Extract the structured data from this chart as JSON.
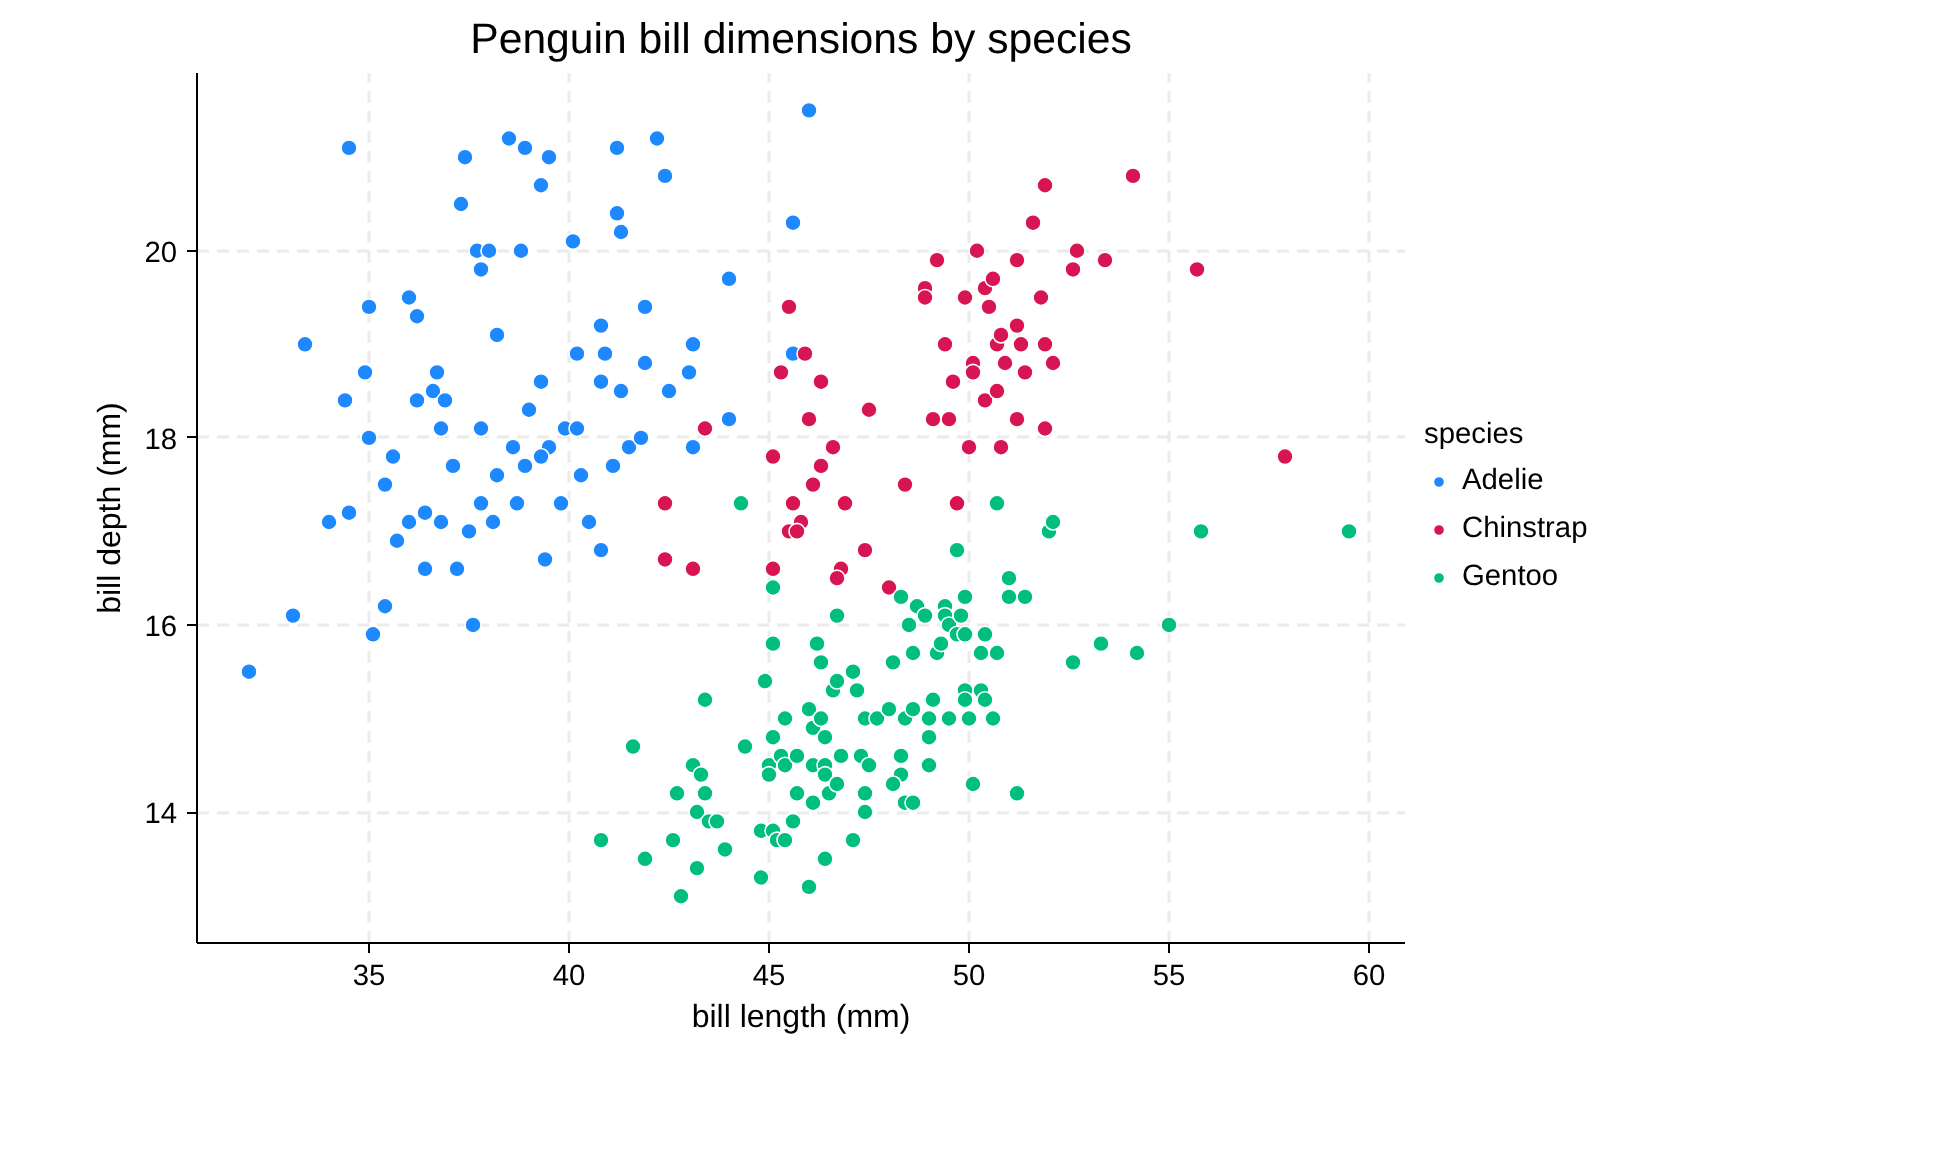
{
  "chart_data": {
    "type": "scatter",
    "title": "Penguin bill dimensions by species",
    "xlabel": "bill length (mm)",
    "ylabel": "bill depth (mm)",
    "legend_title": "species",
    "xlim": [
      30.7,
      60.9
    ],
    "ylim": [
      12.6,
      21.9
    ],
    "xticks": [
      35,
      40,
      45,
      50,
      55,
      60
    ],
    "yticks": [
      14,
      16,
      18,
      20
    ],
    "grid": true,
    "legend": "right",
    "marker": "circle",
    "series": [
      {
        "name": "Adelie",
        "color": "#1e88ff",
        "x": [
          32.0,
          33.1,
          33.4,
          34.0,
          34.5,
          34.4,
          34.5,
          35.1,
          35.4,
          35.0,
          34.9,
          35.0,
          35.4,
          35.6,
          35.7,
          36.0,
          36.2,
          36.0,
          36.2,
          36.4,
          36.6,
          36.7,
          37.1,
          36.9,
          36.8,
          37.2,
          37.4,
          37.3,
          37.7,
          38.0,
          37.8,
          37.6,
          37.8,
          37.5,
          38.1,
          38.2,
          38.2,
          38.5,
          38.9,
          39.3,
          39.5,
          38.8,
          39.0,
          39.3,
          39.4,
          39.9,
          40.1,
          40.2,
          40.8,
          40.9,
          41.2,
          41.2,
          41.3,
          41.9,
          41.9,
          42.2,
          42.4,
          43.1,
          44.0,
          44.0,
          45.6,
          46.0,
          45.6,
          38.6,
          38.9,
          39.5,
          40.3,
          40.5,
          40.8,
          38.7,
          39.8,
          40.8,
          40.2,
          41.3,
          41.5,
          41.8,
          42.5,
          43.0,
          43.1,
          41.1,
          39.3,
          37.8,
          36.8,
          36.4
        ],
        "values": [
          15.5,
          16.1,
          19.0,
          17.1,
          21.1,
          18.4,
          17.2,
          15.9,
          16.2,
          19.4,
          18.7,
          18.0,
          17.5,
          17.8,
          16.9,
          17.1,
          18.4,
          19.5,
          19.3,
          16.6,
          18.5,
          18.7,
          17.7,
          18.4,
          18.1,
          16.6,
          21.0,
          20.5,
          20.0,
          20.0,
          19.8,
          16.0,
          18.1,
          17.0,
          17.1,
          19.1,
          17.6,
          21.2,
          21.1,
          20.7,
          21.0,
          20.0,
          18.3,
          18.6,
          16.7,
          18.1,
          20.1,
          18.1,
          19.2,
          18.9,
          21.1,
          20.4,
          20.2,
          18.8,
          19.4,
          21.2,
          20.8,
          19.0,
          19.7,
          18.2,
          20.3,
          21.5,
          18.9,
          17.9,
          17.7,
          17.9,
          17.6,
          17.1,
          16.8,
          17.3,
          17.3,
          18.6,
          18.9,
          18.5,
          17.9,
          18.0,
          18.5,
          18.7,
          17.9,
          17.7,
          17.8,
          17.3,
          17.1,
          17.2
        ]
      },
      {
        "name": "Chinstrap",
        "color": "#d81553",
        "x": [
          45.5,
          45.9,
          45.3,
          46.3,
          46.0,
          47.5,
          43.4,
          45.1,
          46.6,
          46.3,
          46.1,
          45.6,
          46.9,
          48.4,
          45.8,
          45.5,
          45.7,
          47.4,
          45.1,
          46.8,
          46.7,
          48.0,
          42.4,
          42.4,
          43.1,
          49.7,
          48.9,
          48.9,
          49.2,
          50.2,
          49.9,
          50.4,
          50.6,
          50.5,
          49.4,
          50.1,
          50.1,
          49.6,
          49.1,
          49.5,
          50.0,
          50.8,
          50.4,
          50.7,
          50.9,
          50.7,
          50.8,
          51.2,
          51.3,
          51.4,
          51.2,
          51.9,
          51.9,
          52.1,
          51.8,
          51.2,
          51.6,
          51.9,
          52.7,
          52.6,
          53.4,
          54.1,
          55.7,
          57.9
        ],
        "values": [
          19.4,
          18.9,
          18.7,
          18.6,
          18.2,
          18.3,
          18.1,
          17.8,
          17.9,
          17.7,
          17.5,
          17.3,
          17.3,
          17.5,
          17.1,
          17.0,
          17.0,
          16.8,
          16.6,
          16.6,
          16.5,
          16.4,
          17.3,
          16.7,
          16.6,
          17.3,
          19.6,
          19.5,
          19.9,
          20.0,
          19.5,
          19.6,
          19.7,
          19.4,
          19.0,
          18.8,
          18.7,
          18.6,
          18.2,
          18.2,
          17.9,
          17.9,
          18.4,
          18.5,
          18.8,
          19.0,
          19.1,
          19.2,
          19.0,
          18.7,
          18.2,
          18.1,
          19.0,
          18.8,
          19.5,
          19.9,
          20.3,
          20.7,
          20.0,
          19.8,
          19.9,
          20.8,
          19.8,
          17.8
        ]
      },
      {
        "name": "Gentoo",
        "color": "#00bf7d",
        "x": [
          40.8,
          41.6,
          41.9,
          42.6,
          42.7,
          42.8,
          43.1,
          43.3,
          43.4,
          43.2,
          43.5,
          43.7,
          43.2,
          43.9,
          43.4,
          44.4,
          44.8,
          44.8,
          45.1,
          45.2,
          45.4,
          45.6,
          46.0,
          46.4,
          47.1,
          44.9,
          45.1,
          45.1,
          45.0,
          45.0,
          45.3,
          45.4,
          45.7,
          45.7,
          46.1,
          45.4,
          46.0,
          46.1,
          46.3,
          46.4,
          46.1,
          46.4,
          46.4,
          46.5,
          46.7,
          46.2,
          46.3,
          46.6,
          46.7,
          47.1,
          47.2,
          46.7,
          45.1,
          46.8,
          47.3,
          47.5,
          47.4,
          47.4,
          47.4,
          47.7,
          48.0,
          48.4,
          48.6,
          49.0,
          49.1,
          49.0,
          49.0,
          48.3,
          48.3,
          48.1,
          48.4,
          48.6,
          48.1,
          48.6,
          48.5,
          48.7,
          48.9,
          48.3,
          49.2,
          49.3,
          49.4,
          49.4,
          49.5,
          49.7,
          49.8,
          49.9,
          49.9,
          49.5,
          49.9,
          49.9,
          50.0,
          50.3,
          50.4,
          50.6,
          50.3,
          50.7,
          50.4,
          51.0,
          51.0,
          51.4,
          50.1,
          51.2,
          52.6,
          53.3,
          54.2,
          55.0,
          55.8,
          52.0,
          52.1,
          50.7,
          49.7,
          44.3,
          59.5
        ],
        "values": [
          13.7,
          14.7,
          13.5,
          13.7,
          14.2,
          13.1,
          14.5,
          14.4,
          14.2,
          14.0,
          13.9,
          13.9,
          13.4,
          13.6,
          15.2,
          14.7,
          13.8,
          13.3,
          13.8,
          13.7,
          13.7,
          13.9,
          13.2,
          13.5,
          13.7,
          15.4,
          15.8,
          14.8,
          14.5,
          14.4,
          14.6,
          14.5,
          14.6,
          14.2,
          14.1,
          15.0,
          15.1,
          14.9,
          15.0,
          14.8,
          14.5,
          14.5,
          14.4,
          14.2,
          14.3,
          15.8,
          15.6,
          15.3,
          15.4,
          15.5,
          15.3,
          16.1,
          16.4,
          14.6,
          14.6,
          14.5,
          14.2,
          14.0,
          15.0,
          15.0,
          15.1,
          15.0,
          15.1,
          15.0,
          15.2,
          14.8,
          14.5,
          14.6,
          14.4,
          14.3,
          14.1,
          14.1,
          15.6,
          15.7,
          16.0,
          16.2,
          16.1,
          16.3,
          15.7,
          15.8,
          16.2,
          16.1,
          16.0,
          15.9,
          16.1,
          16.3,
          15.9,
          15.0,
          15.3,
          15.2,
          15.0,
          15.3,
          15.2,
          15.0,
          15.7,
          15.7,
          15.9,
          16.5,
          16.3,
          16.3,
          14.3,
          14.2,
          15.6,
          15.8,
          15.7,
          16.0,
          17.0,
          17.0,
          17.1,
          17.3,
          16.8,
          17.3,
          17.0
        ]
      }
    ]
  }
}
